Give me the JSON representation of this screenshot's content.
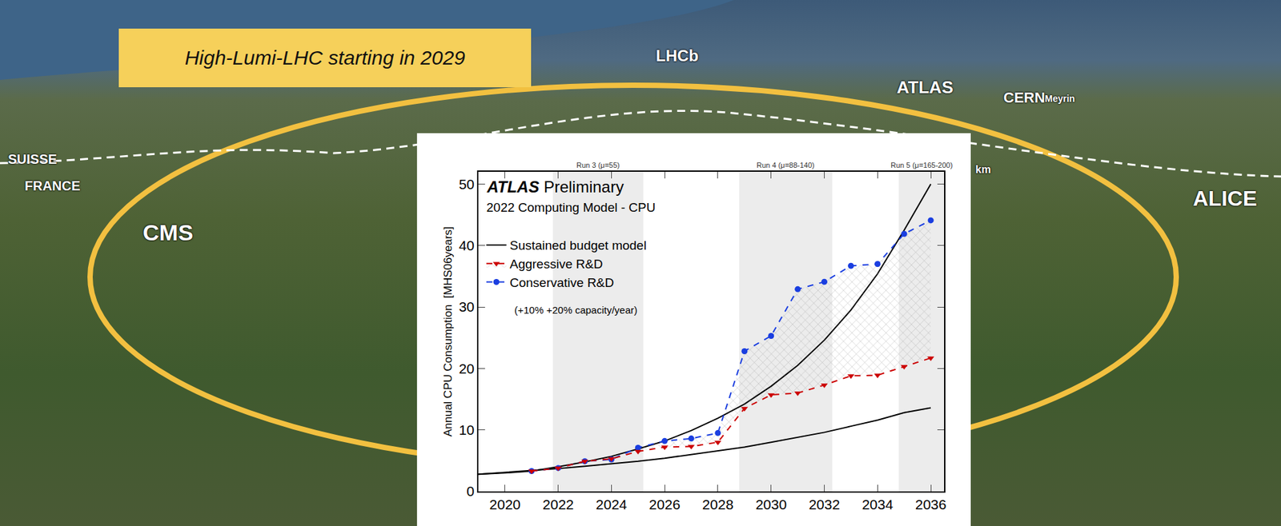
{
  "slide": {
    "banner": "High-Lumi-LHC starting in 2029",
    "map_labels": [
      "LHCb",
      "ATLAS",
      "CERN",
      "Meyrin",
      "SUISSE",
      "FRANCE",
      "CMS",
      "ALICE",
      "km"
    ]
  },
  "chart_data": {
    "type": "line",
    "experiment": "ATLAS",
    "status": "Preliminary",
    "title": "2022 Computing Model - CPU",
    "y_label": "Annual CPU Consumption  [MHS06years]",
    "x": [
      2021,
      2022,
      2023,
      2024,
      2025,
      2026,
      2027,
      2028,
      2029,
      2030,
      2031,
      2032,
      2033,
      2034,
      2035,
      2036
    ],
    "series": [
      {
        "name": "Conservative R&D",
        "color": "#1a3ee0",
        "marker": "circle",
        "line_style": "dash",
        "values": [
          3.3,
          3.8,
          4.9,
          5.2,
          7.1,
          8.2,
          8.6,
          9.5,
          22.8,
          25.3,
          32.9,
          34.1,
          36.7,
          37.0,
          41.9,
          44.1
        ]
      },
      {
        "name": "Aggressive R&D",
        "color": "#cc0000",
        "marker": "triangle-down",
        "line_style": "dash",
        "values": [
          3.3,
          3.8,
          4.9,
          5.3,
          6.5,
          7.2,
          7.3,
          8.0,
          13.5,
          15.7,
          16.0,
          17.3,
          18.8,
          18.9,
          20.3,
          21.7
        ]
      }
    ],
    "budget": {
      "name": "Sustained budget model",
      "note": "(+10% +20% capacity/year)",
      "color": "#000000",
      "x": [
        2019,
        2020,
        2021,
        2022,
        2023,
        2024,
        2025,
        2026,
        2027,
        2028,
        2029,
        2030,
        2031,
        2032,
        2033,
        2034,
        2035,
        2036
      ],
      "low": [
        2.8,
        3.1,
        3.4,
        3.7,
        4.1,
        4.5,
        4.9,
        5.4,
        6.0,
        6.6,
        7.2,
        8.0,
        8.8,
        9.6,
        10.6,
        11.6,
        12.8,
        13.6
      ],
      "high": [
        2.8,
        3.0,
        3.3,
        4.0,
        4.8,
        5.7,
        6.9,
        8.2,
        9.9,
        11.9,
        14.2,
        17.1,
        20.5,
        24.6,
        29.5,
        35.4,
        42.5,
        50.0
      ]
    },
    "runs": [
      {
        "label": "Run 3 (μ=55)",
        "start": 2021.8,
        "end": 2025.2
      },
      {
        "label": "Run 4 (μ=88-140)",
        "start": 2028.8,
        "end": 2032.3
      },
      {
        "label": "Run 5 (μ=165-200)",
        "start": 2034.8,
        "end": 2036.5
      }
    ],
    "xlim": [
      2019,
      2036.5
    ],
    "xticks": [
      2020,
      2022,
      2024,
      2026,
      2028,
      2030,
      2032,
      2034,
      2036
    ],
    "ylim": [
      0,
      52
    ],
    "yticks": [
      0,
      10,
      20,
      30,
      40,
      50
    ],
    "grid": false,
    "legend": "upper left"
  }
}
